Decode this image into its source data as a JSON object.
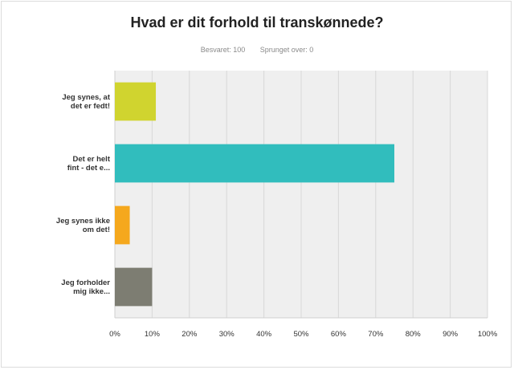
{
  "title": "Hvad er dit forhold til transkønnede?",
  "stats": {
    "answered": "Besvaret: 100",
    "skipped": "Sprunget over: 0"
  },
  "chart_data": {
    "type": "bar",
    "orientation": "horizontal",
    "categories": [
      [
        "Jeg synes, at",
        "det er fedt!"
      ],
      [
        "Det er helt",
        "fint - det e..."
      ],
      [
        "Jeg synes ikke",
        "om det!"
      ],
      [
        "Jeg forholder",
        "mig ikke..."
      ]
    ],
    "values": [
      11,
      75,
      4,
      10
    ],
    "colors": [
      "#d0d42f",
      "#31bdbd",
      "#f5a81d",
      "#7d7d72"
    ],
    "xlim": [
      0,
      100
    ],
    "x_ticks": [
      "0%",
      "10%",
      "20%",
      "30%",
      "40%",
      "50%",
      "60%",
      "70%",
      "80%",
      "90%",
      "100%"
    ],
    "grid": true,
    "background": "#efefef"
  }
}
